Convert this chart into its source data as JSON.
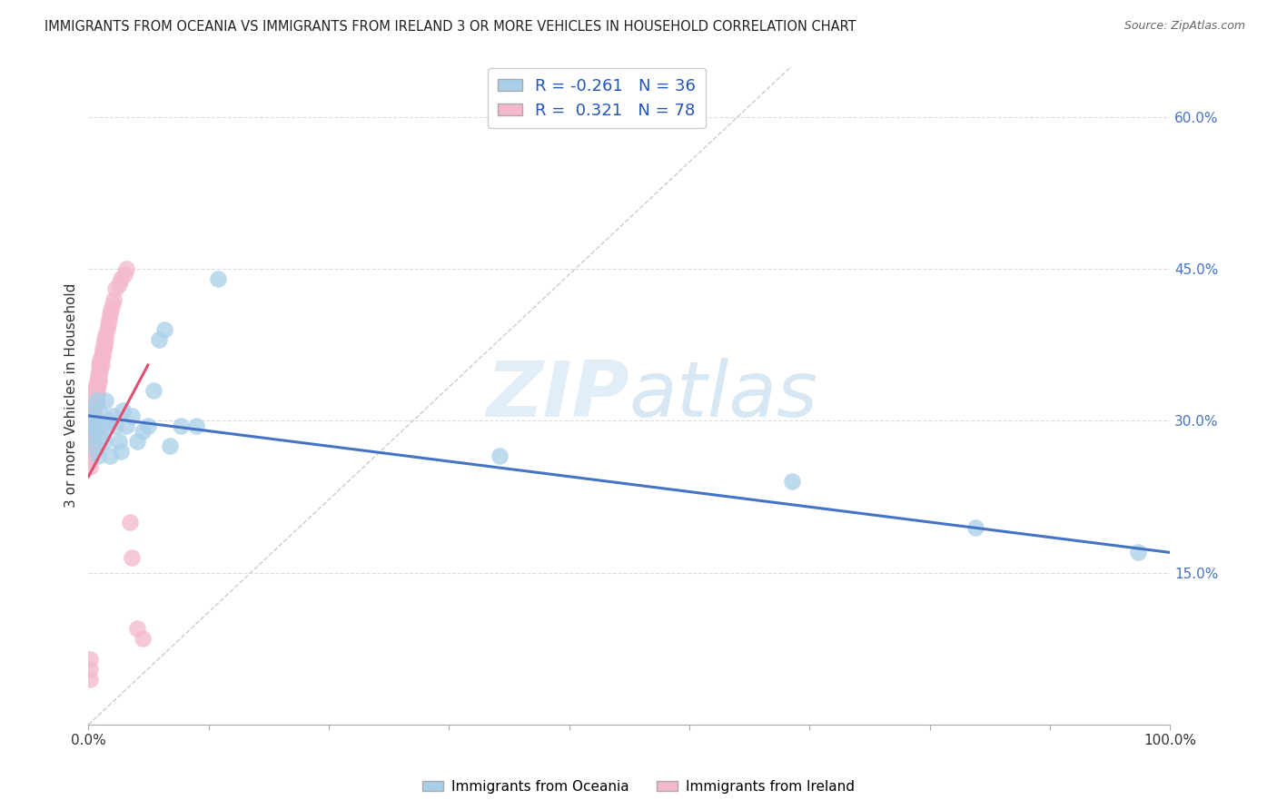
{
  "title": "IMMIGRANTS FROM OCEANIA VS IMMIGRANTS FROM IRELAND 3 OR MORE VEHICLES IN HOUSEHOLD CORRELATION CHART",
  "source": "Source: ZipAtlas.com",
  "ylabel": "3 or more Vehicles in Household",
  "x_tick_labels": [
    "0.0%",
    "",
    "",
    "",
    "",
    "",
    "",
    "",
    "",
    "100.0%"
  ],
  "y_tick_labels": [
    "15.0%",
    "30.0%",
    "45.0%",
    "60.0%"
  ],
  "y_tick_vals": [
    0.15,
    0.3,
    0.45,
    0.6
  ],
  "xlim": [
    0.0,
    1.0
  ],
  "ylim": [
    0.0,
    0.65
  ],
  "legend_R_oceania": "-0.261",
  "legend_N_oceania": "36",
  "legend_R_ireland": "0.321",
  "legend_N_ireland": "78",
  "color_oceania": "#a8cfe8",
  "color_ireland": "#f4b8cc",
  "line_color_oceania": "#4472c4",
  "line_color_ireland": "#e05070",
  "ref_line_color": "#cccccc",
  "watermark_zip": "ZIP",
  "watermark_atlas": "atlas",
  "oceania_x": [
    0.002,
    0.003,
    0.004,
    0.005,
    0.006,
    0.007,
    0.008,
    0.009,
    0.01,
    0.012,
    0.013,
    0.015,
    0.016,
    0.018,
    0.02,
    0.022,
    0.025,
    0.028,
    0.03,
    0.032,
    0.035,
    0.04,
    0.045,
    0.05,
    0.055,
    0.065,
    0.075,
    0.085,
    0.1,
    0.12,
    0.06,
    0.07,
    0.38,
    0.65,
    0.82,
    0.97
  ],
  "oceania_y": [
    0.295,
    0.31,
    0.285,
    0.3,
    0.275,
    0.32,
    0.295,
    0.265,
    0.31,
    0.285,
    0.295,
    0.28,
    0.32,
    0.3,
    0.265,
    0.305,
    0.295,
    0.28,
    0.27,
    0.31,
    0.295,
    0.305,
    0.28,
    0.29,
    0.295,
    0.38,
    0.275,
    0.295,
    0.295,
    0.44,
    0.33,
    0.39,
    0.265,
    0.24,
    0.195,
    0.17
  ],
  "ireland_x": [
    0.001,
    0.001,
    0.001,
    0.001,
    0.002,
    0.002,
    0.002,
    0.002,
    0.002,
    0.003,
    0.003,
    0.003,
    0.003,
    0.003,
    0.004,
    0.004,
    0.004,
    0.004,
    0.004,
    0.005,
    0.005,
    0.005,
    0.005,
    0.005,
    0.005,
    0.006,
    0.006,
    0.006,
    0.006,
    0.006,
    0.007,
    0.007,
    0.007,
    0.007,
    0.008,
    0.008,
    0.008,
    0.008,
    0.009,
    0.009,
    0.009,
    0.01,
    0.01,
    0.01,
    0.01,
    0.011,
    0.011,
    0.011,
    0.012,
    0.012,
    0.012,
    0.013,
    0.013,
    0.014,
    0.014,
    0.015,
    0.015,
    0.016,
    0.016,
    0.017,
    0.018,
    0.019,
    0.02,
    0.021,
    0.022,
    0.023,
    0.025,
    0.028,
    0.03,
    0.033,
    0.035,
    0.038,
    0.04,
    0.045,
    0.05,
    0.001,
    0.001,
    0.001
  ],
  "ireland_y": [
    0.27,
    0.265,
    0.26,
    0.255,
    0.285,
    0.28,
    0.275,
    0.27,
    0.265,
    0.295,
    0.29,
    0.285,
    0.28,
    0.275,
    0.31,
    0.305,
    0.3,
    0.295,
    0.29,
    0.32,
    0.315,
    0.31,
    0.305,
    0.3,
    0.295,
    0.33,
    0.325,
    0.32,
    0.315,
    0.31,
    0.335,
    0.33,
    0.325,
    0.32,
    0.34,
    0.335,
    0.33,
    0.325,
    0.345,
    0.34,
    0.335,
    0.355,
    0.35,
    0.345,
    0.34,
    0.36,
    0.355,
    0.35,
    0.365,
    0.36,
    0.355,
    0.37,
    0.365,
    0.375,
    0.37,
    0.38,
    0.375,
    0.385,
    0.38,
    0.39,
    0.395,
    0.4,
    0.405,
    0.41,
    0.415,
    0.42,
    0.43,
    0.435,
    0.44,
    0.445,
    0.45,
    0.2,
    0.165,
    0.095,
    0.085,
    0.065,
    0.055,
    0.045
  ]
}
